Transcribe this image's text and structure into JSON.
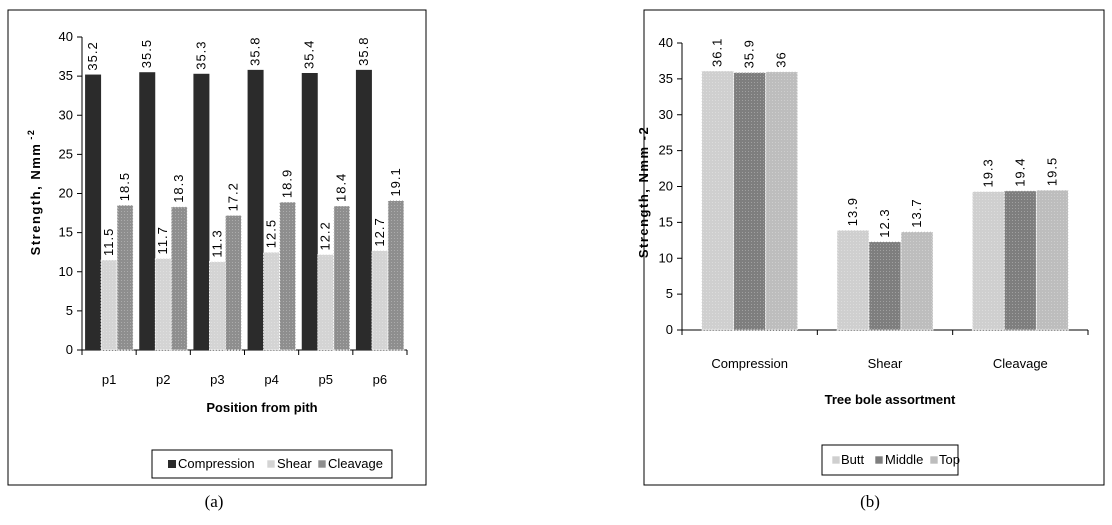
{
  "chart_data": [
    {
      "type": "bar",
      "ylabel": "Strength, Nmm",
      "ylabel_superscript": "-2",
      "xlabel": "Position from pith",
      "categories": [
        "p1",
        "p2",
        "p3",
        "p4",
        "p5",
        "p6"
      ],
      "ylim": [
        0,
        40
      ],
      "yticks": [
        0,
        5,
        10,
        15,
        20,
        25,
        30,
        35,
        40
      ],
      "grid": false,
      "legend": "bottom",
      "series": [
        {
          "name": "Compression",
          "values": [
            35.2,
            35.5,
            35.3,
            35.8,
            35.4,
            35.8
          ],
          "labels": [
            "35.2",
            "35.5",
            "35.3",
            "35.8",
            "35.4",
            "35.8"
          ],
          "color": "#2b2b2b"
        },
        {
          "name": "Shear",
          "values": [
            11.5,
            11.7,
            11.3,
            12.5,
            12.2,
            12.7
          ],
          "labels": [
            "11.5",
            "11.7",
            "11.3",
            "12.5",
            "12.2",
            "12.7"
          ],
          "color": "#d4d4d4"
        },
        {
          "name": "Cleavage",
          "values": [
            18.5,
            18.3,
            17.2,
            18.9,
            18.4,
            19.1
          ],
          "labels": [
            "18.5",
            "18.3",
            "17.2",
            "18.9",
            "18.4",
            "19.1"
          ],
          "color": "#8e8e8e"
        }
      ],
      "caption": "(a)"
    },
    {
      "type": "bar",
      "ylabel": "Strength, Nmm -2",
      "xlabel": "Tree bole assortment",
      "categories": [
        "Compression",
        "Shear",
        "Cleavage"
      ],
      "ylim": [
        0,
        40
      ],
      "yticks": [
        0,
        5,
        10,
        15,
        20,
        25,
        30,
        35,
        40
      ],
      "grid": false,
      "legend": "bottom",
      "series": [
        {
          "name": "Butt",
          "values": [
            36.1,
            13.9,
            19.3
          ],
          "labels": [
            "36.1",
            "13.9",
            "19.3"
          ],
          "color": "#cfcfcf"
        },
        {
          "name": "Middle",
          "values": [
            35.9,
            12.3,
            19.4
          ],
          "labels": [
            "35.9",
            "12.3",
            "19.4"
          ],
          "color": "#7e7e7e"
        },
        {
          "name": "Top",
          "values": [
            36.0,
            13.7,
            19.5
          ],
          "labels": [
            "36",
            "13.7",
            "19.5"
          ],
          "color": "#bdbdbd"
        }
      ],
      "caption": "(b)"
    }
  ]
}
